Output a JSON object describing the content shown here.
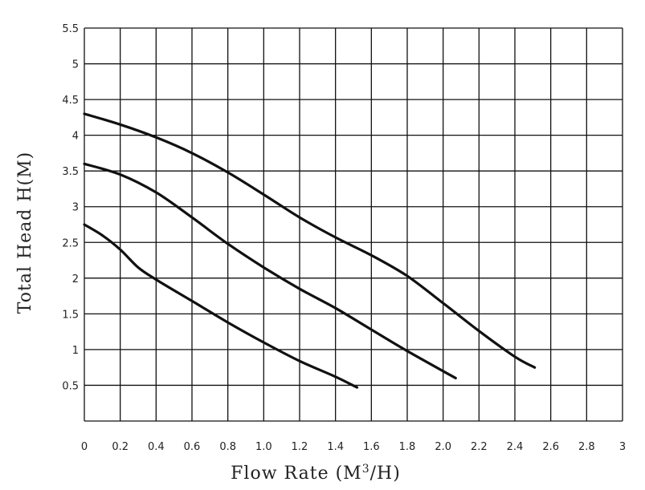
{
  "chart_data": {
    "type": "line",
    "xlabel": "Flow Rate (M",
    "xlabel_sup": "3",
    "xlabel_suffix": "/H)",
    "ylabel": "Total Head H(M)",
    "xlim": [
      0,
      3
    ],
    "ylim": [
      0,
      5.5
    ],
    "x_ticks": [
      "0",
      "0.2",
      "0.4",
      "0.6",
      "0.8",
      "1.0",
      "1.2",
      "1.4",
      "1.6",
      "1.8",
      "2.0",
      "2.2",
      "2.4",
      "2.6",
      "2.8",
      "3"
    ],
    "y_ticks": [
      "0.5",
      "1",
      "1.5",
      "2",
      "2.5",
      "3",
      "3.5",
      "4",
      "4.5",
      "5",
      "5.5"
    ],
    "grid": true,
    "line_color": "#111111",
    "series": [
      {
        "x": [
          0,
          0.1,
          0.2,
          0.3,
          0.4,
          0.6,
          0.8,
          1.0,
          1.2,
          1.4,
          1.52
        ],
        "y": [
          2.75,
          2.6,
          2.4,
          2.15,
          1.98,
          1.68,
          1.38,
          1.1,
          0.84,
          0.62,
          0.47
        ]
      },
      {
        "x": [
          0,
          0.2,
          0.4,
          0.6,
          0.8,
          1.0,
          1.2,
          1.4,
          1.6,
          1.8,
          2.07
        ],
        "y": [
          3.6,
          3.45,
          3.2,
          2.85,
          2.48,
          2.15,
          1.85,
          1.58,
          1.28,
          0.98,
          0.6
        ]
      },
      {
        "x": [
          0,
          0.2,
          0.4,
          0.6,
          0.8,
          1.0,
          1.2,
          1.4,
          1.6,
          1.8,
          2.0,
          2.2,
          2.4,
          2.51
        ],
        "y": [
          4.3,
          4.15,
          3.97,
          3.75,
          3.48,
          3.17,
          2.85,
          2.57,
          2.32,
          2.03,
          1.65,
          1.26,
          0.9,
          0.75
        ]
      }
    ]
  }
}
